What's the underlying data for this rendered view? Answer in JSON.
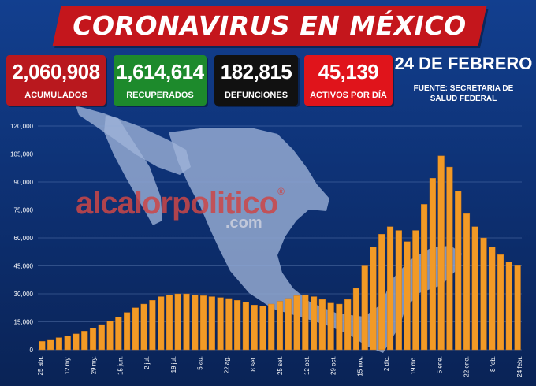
{
  "header": {
    "title": "CORONAVIRUS EN MÉXICO",
    "date": "24 DE FEBRERO",
    "source_line1": "FUENTE: SECRETARÍA DE",
    "source_line2": "SALUD FEDERAL"
  },
  "stats": {
    "acumulados": {
      "value": "2,060,908",
      "label": "ACUMULADOS",
      "color": "#b9181e"
    },
    "recuperados": {
      "value": "1,614,614",
      "label": "RECUPERADOS",
      "color": "#1d8a2c"
    },
    "defunciones": {
      "value": "182,815",
      "label": "DEFUNCIONES",
      "color": "#111111"
    },
    "activos": {
      "value": "45,139",
      "label": "ACTIVOS POR DÍA",
      "color": "#e0141b"
    }
  },
  "watermark": {
    "brand": "alcalorpolitico",
    "reg": "®",
    "domain": ".com"
  },
  "colors": {
    "bar": "#f29a26",
    "background": "#0f3377",
    "grid": "#8aa6d8"
  },
  "chart_data": {
    "type": "bar",
    "title": "",
    "xlabel": "",
    "ylabel": "",
    "ylim": [
      0,
      120000
    ],
    "grid": true,
    "y_ticks": [
      "0",
      "15,000",
      "30,000",
      "45,000",
      "60,000",
      "75,000",
      "90,000",
      "105,000",
      "120,000"
    ],
    "x_ticks": [
      "25 abr.",
      "12 my.",
      "29 my.",
      "15 jun.",
      "2 jul.",
      "19 jul.",
      "5 ag.",
      "22 ag.",
      "8 set.",
      "25 set.",
      "12 oct.",
      "29 oct.",
      "15 nov.",
      "2 dic.",
      "19 dic.",
      "5 ene.",
      "22 ene.",
      "8 feb.",
      "24 febr."
    ],
    "series": [
      {
        "values": [
          4500,
          5500,
          6500,
          7500,
          8500,
          10000,
          11500,
          13500,
          15500,
          17500,
          20000,
          22500,
          24500,
          26500,
          28500,
          29500,
          30000,
          30000,
          29500,
          29000,
          28500,
          28000,
          27500,
          26500,
          25500,
          24000,
          23500,
          24500,
          26000,
          27500,
          29000,
          29500,
          28500,
          27000,
          25000,
          24500,
          27000,
          33000,
          45000,
          55000,
          62000,
          66000,
          64000,
          58000,
          64000,
          78000,
          92000,
          104000,
          98000,
          85000,
          73000,
          66000,
          60000,
          55000,
          51000,
          47000,
          45139
        ]
      }
    ]
  }
}
